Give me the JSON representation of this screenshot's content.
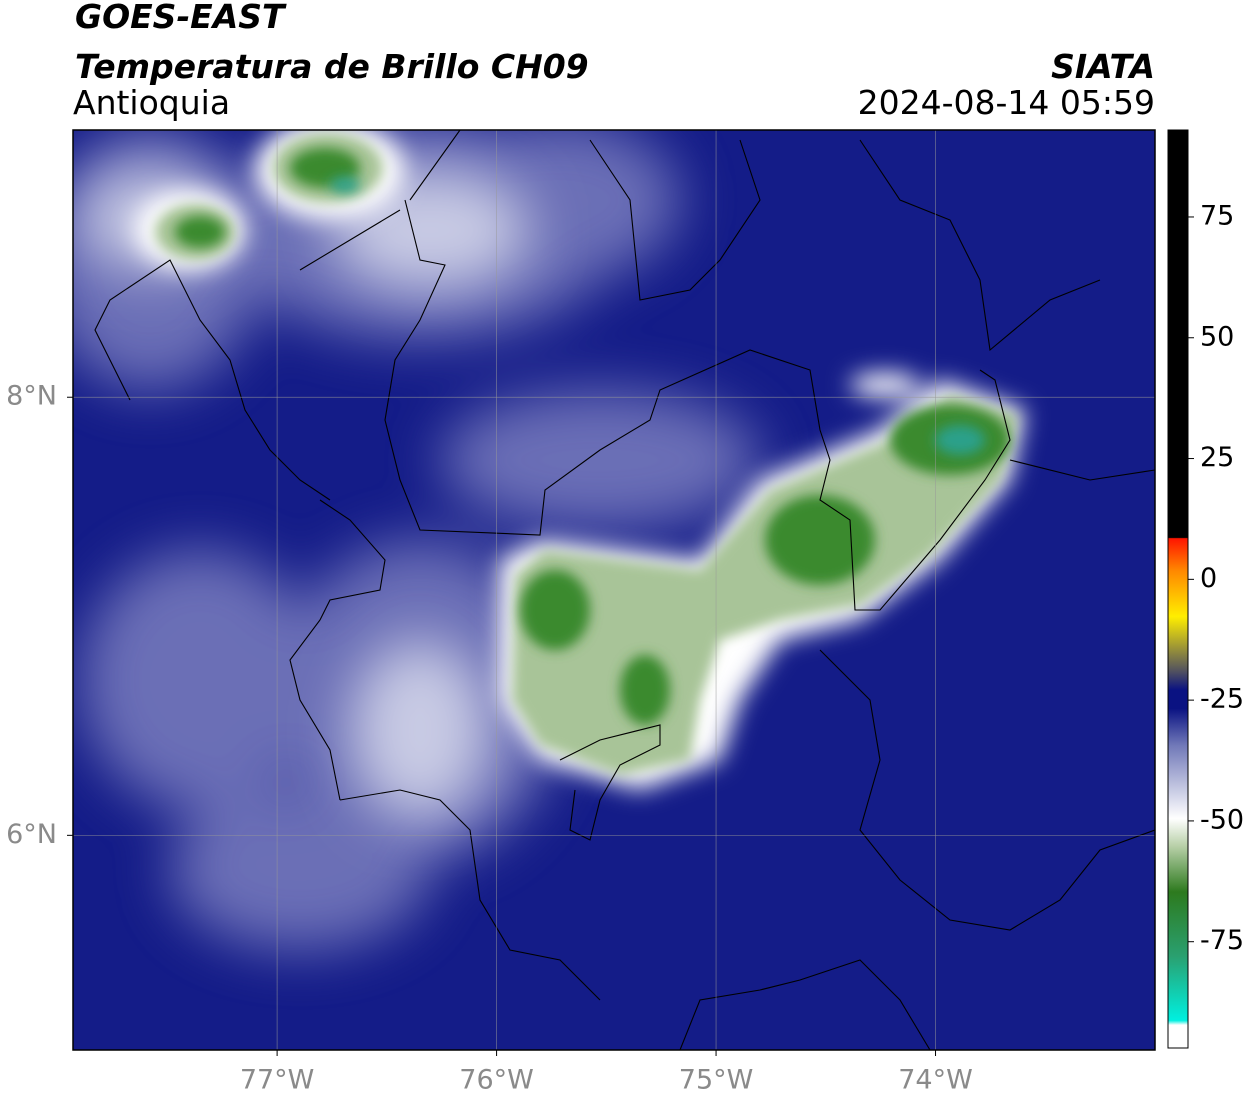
{
  "header": {
    "title": "GOES-EAST",
    "subtitle": "Temperatura de Brillo CH09",
    "region": "Antioquia",
    "source": "SIATA",
    "datetime": "2024-08-14 05:59"
  },
  "map": {
    "lon_range": [
      -77.93,
      -73.0
    ],
    "lat_range": [
      5.02,
      9.22
    ],
    "lon_ticks": [
      {
        "value": -77,
        "label": "77°W"
      },
      {
        "value": -76,
        "label": "76°W"
      },
      {
        "value": -75,
        "label": "75°W"
      },
      {
        "value": -74,
        "label": "74°W"
      }
    ],
    "lat_ticks": [
      {
        "value": 8,
        "label": "8°N"
      },
      {
        "value": 6,
        "label": "6°N"
      }
    ],
    "grid": true
  },
  "colorbar": {
    "range": [
      -97,
      93
    ],
    "ticks": [
      75,
      50,
      25,
      0,
      -25,
      -50,
      -75
    ]
  }
}
